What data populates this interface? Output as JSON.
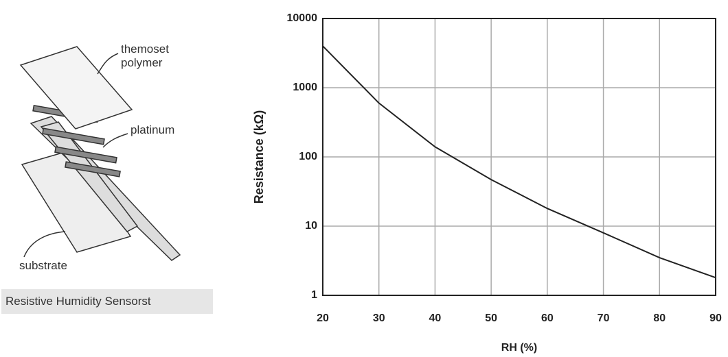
{
  "diagram": {
    "labels": [
      "themoset polymer",
      "platinum",
      "substrate"
    ],
    "caption": "Resistive Humidity Sensorst"
  },
  "chart_data": {
    "type": "line",
    "x_label": "RH (%)",
    "y_label": "Resistance (kΩ)",
    "x": [
      20,
      30,
      40,
      50,
      60,
      70,
      80,
      90
    ],
    "series": [
      {
        "color": "#222222",
        "values": [
          4000,
          600,
          140,
          47,
          18,
          8,
          3.5,
          1.8
        ]
      }
    ],
    "xlim": [
      20,
      90
    ],
    "xticks": [
      20,
      30,
      40,
      50,
      60,
      70,
      80,
      90
    ],
    "ylim": [
      1,
      10000
    ],
    "yticks": [
      1,
      10,
      100,
      1000,
      10000
    ],
    "log_y": true,
    "grid": true
  }
}
